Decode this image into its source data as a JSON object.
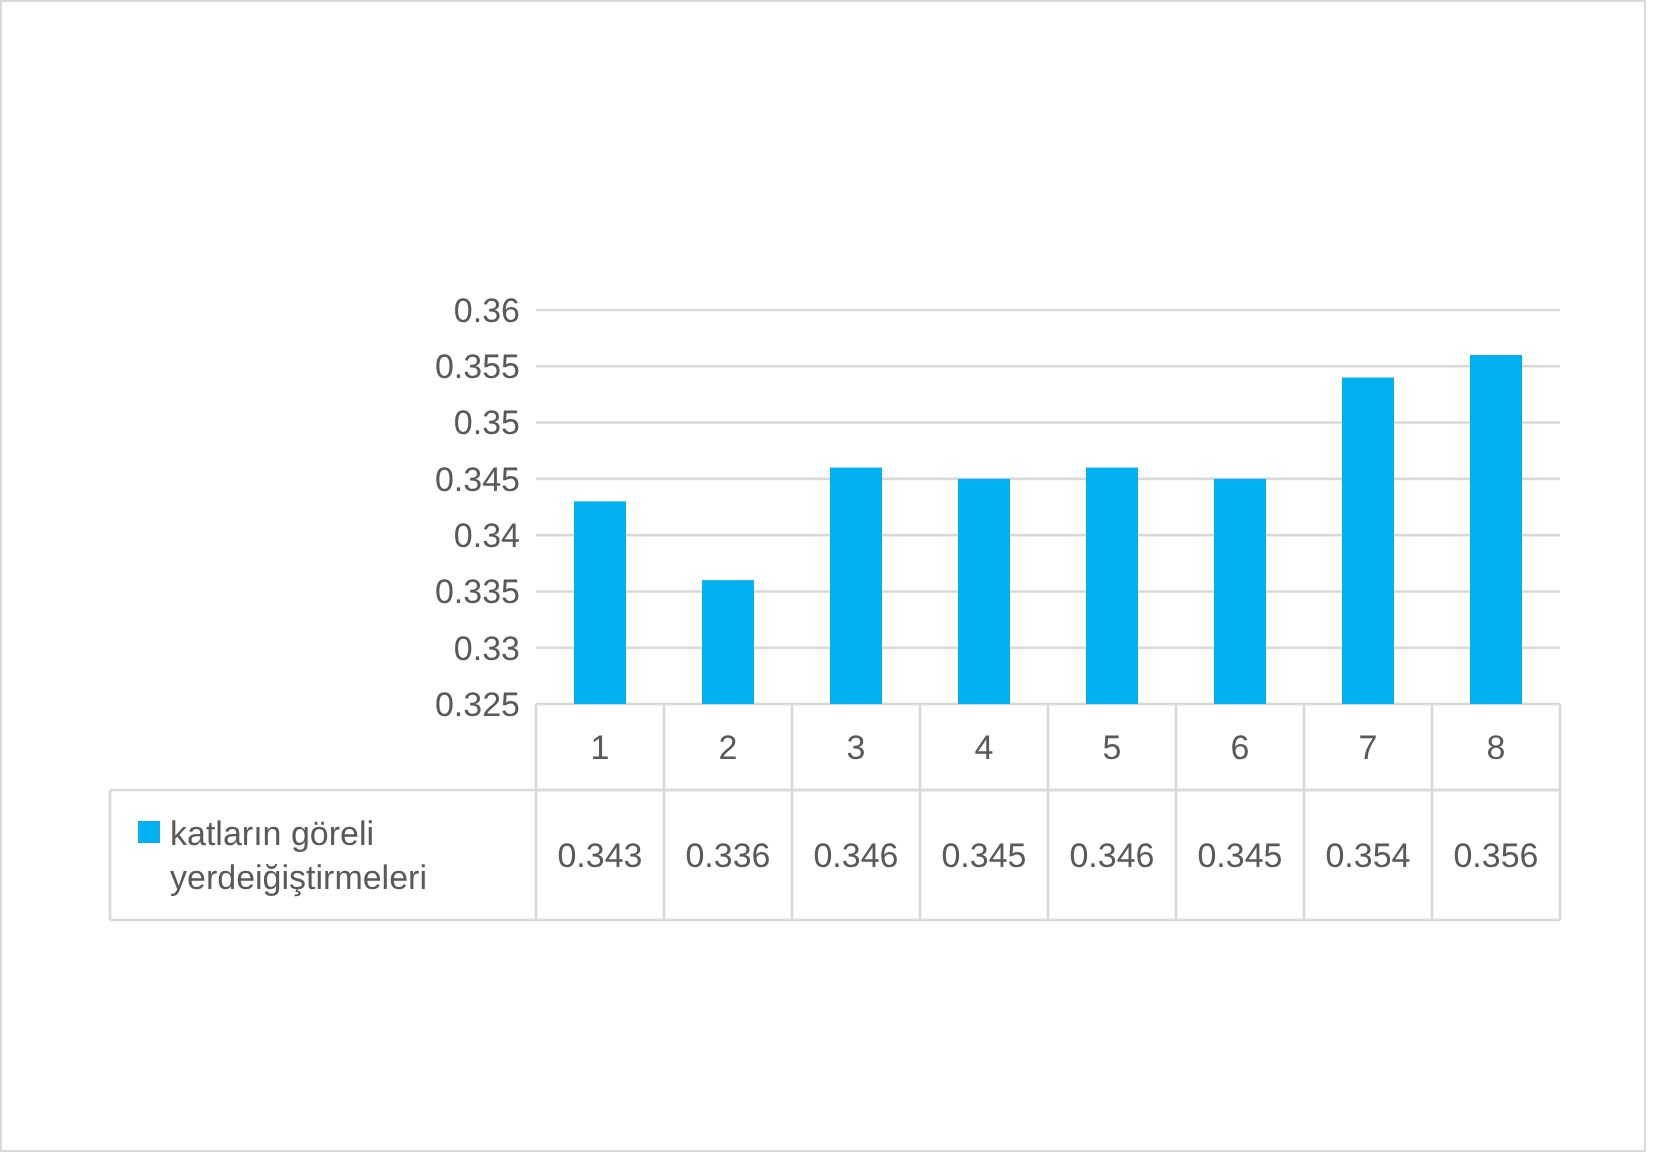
{
  "chart_data": {
    "type": "bar",
    "categories": [
      "1",
      "2",
      "3",
      "4",
      "5",
      "6",
      "7",
      "8"
    ],
    "series": [
      {
        "name": "katların göreli yerdeiğiştirmeleri",
        "color": "#00b0f0",
        "values": [
          0.343,
          0.336,
          0.346,
          0.345,
          0.346,
          0.345,
          0.354,
          0.356
        ]
      }
    ],
    "ylim": [
      0.325,
      0.36
    ],
    "yticks": [
      0.325,
      0.33,
      0.335,
      0.34,
      0.345,
      0.35,
      0.355,
      0.36
    ],
    "grid": "y",
    "data_labels": true,
    "legend": "bottom"
  }
}
